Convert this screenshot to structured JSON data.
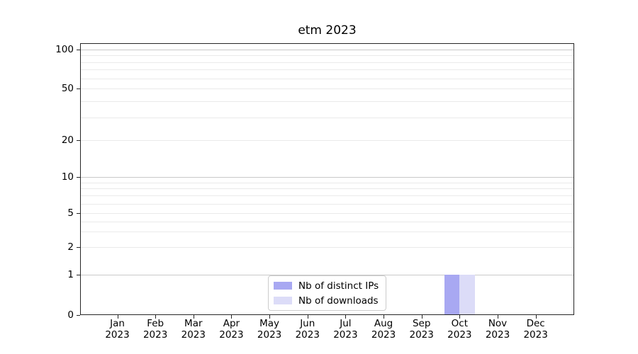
{
  "chart_data": {
    "type": "bar",
    "title": "etm 2023",
    "categories": [
      "Jan 2023",
      "Feb 2023",
      "Mar 2023",
      "Apr 2023",
      "May 2023",
      "Jun 2023",
      "Jul 2023",
      "Aug 2023",
      "Sep 2023",
      "Oct 2023",
      "Nov 2023",
      "Dec 2023"
    ],
    "series": [
      {
        "name": "Nb of distinct IPs",
        "color": "#a8a8f2",
        "values": [
          0,
          0,
          0,
          0,
          0,
          0,
          0,
          0,
          0,
          1,
          0,
          0
        ]
      },
      {
        "name": "Nb of downloads",
        "color": "#dcdcf8",
        "values": [
          0,
          0,
          0,
          0,
          0,
          0,
          0,
          0,
          0,
          1,
          0,
          0
        ]
      }
    ],
    "xlabel": "",
    "ylabel": "",
    "yscale": "symlog",
    "ylim": [
      0,
      150
    ],
    "y_labeled_ticks": [
      0,
      1,
      2,
      5,
      10,
      20,
      50,
      100
    ],
    "y_emphasis_gridlines": [
      1,
      10,
      100
    ],
    "y_minor_gridlines": [
      3,
      4,
      6,
      7,
      8,
      9,
      30,
      40,
      60,
      70,
      80,
      90
    ],
    "grid": "horizontal",
    "legend_position": "lower-center"
  },
  "colors": {
    "axis": "#262626",
    "grid_major": "#c9c9c9",
    "grid_minor": "#eaeaea",
    "legend_border": "#cccccc",
    "text": "#000000",
    "background": "#ffffff"
  }
}
